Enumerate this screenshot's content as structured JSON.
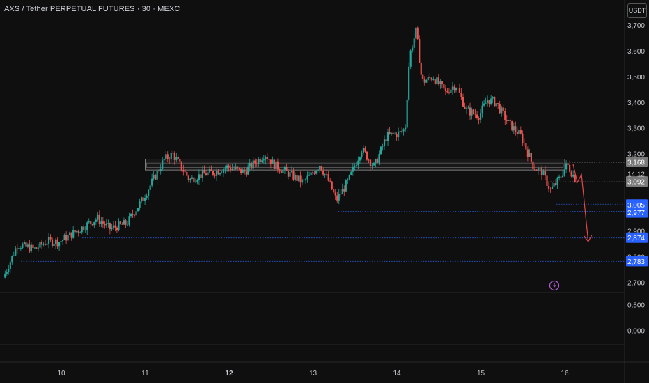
{
  "header": {
    "title": "AXS / Tether PERPETUAL FUTURES · 30 · MEXC",
    "currency": "USDT"
  },
  "colors": {
    "background": "#0f0f0f",
    "up": "#26a69a",
    "down": "#ef5350",
    "blue_tag": "#2962ff",
    "gray_tag": "#7a7a7a",
    "dotted_blue": "#2a5bd7",
    "lightning": "#b35cd6",
    "arrow": "#e04a4a"
  },
  "chart_data": {
    "type": "candlestick",
    "title": "AXS / Tether PERPETUAL FUTURES · 30 · MEXC",
    "ylim": [
      2.7,
      3.72
    ],
    "y_ticks_upper": [
      "3,700",
      "3,600",
      "3,500",
      "3,400",
      "3,300",
      "3,200",
      "2,900",
      "2,800",
      "2,700"
    ],
    "y_ticks_lower": [
      "0,500",
      "0,000"
    ],
    "x_ticks": [
      "10",
      "11",
      "12",
      "13",
      "14",
      "15",
      "16"
    ],
    "x_range": [
      9.3,
      16.75
    ],
    "price_path": [
      [
        9.33,
        2.72
      ],
      [
        9.5,
        2.85
      ],
      [
        9.7,
        2.83
      ],
      [
        9.85,
        2.86
      ],
      [
        10.0,
        2.86
      ],
      [
        10.2,
        2.9
      ],
      [
        10.45,
        2.95
      ],
      [
        10.6,
        2.91
      ],
      [
        10.8,
        2.93
      ],
      [
        11.0,
        3.03
      ],
      [
        11.15,
        3.12
      ],
      [
        11.25,
        3.18
      ],
      [
        11.35,
        3.2
      ],
      [
        11.45,
        3.15
      ],
      [
        11.55,
        3.1
      ],
      [
        11.7,
        3.12
      ],
      [
        11.85,
        3.13
      ],
      [
        12.0,
        3.15
      ],
      [
        12.2,
        3.13
      ],
      [
        12.45,
        3.2
      ],
      [
        12.55,
        3.16
      ],
      [
        12.75,
        3.12
      ],
      [
        12.9,
        3.09
      ],
      [
        13.0,
        3.12
      ],
      [
        13.1,
        3.16
      ],
      [
        13.2,
        3.1
      ],
      [
        13.3,
        3.02
      ],
      [
        13.45,
        3.1
      ],
      [
        13.6,
        3.22
      ],
      [
        13.75,
        3.15
      ],
      [
        13.9,
        3.27
      ],
      [
        14.05,
        3.28
      ],
      [
        14.12,
        3.3
      ],
      [
        14.17,
        3.58
      ],
      [
        14.25,
        3.68
      ],
      [
        14.32,
        3.48
      ],
      [
        14.45,
        3.5
      ],
      [
        14.6,
        3.44
      ],
      [
        14.72,
        3.47
      ],
      [
        14.85,
        3.37
      ],
      [
        15.0,
        3.35
      ],
      [
        15.1,
        3.41
      ],
      [
        15.2,
        3.4
      ],
      [
        15.35,
        3.32
      ],
      [
        15.5,
        3.27
      ],
      [
        15.65,
        3.15
      ],
      [
        15.75,
        3.13
      ],
      [
        15.85,
        3.06
      ],
      [
        15.95,
        3.1
      ],
      [
        16.05,
        3.16
      ],
      [
        16.15,
        3.1
      ]
    ],
    "levels": [
      {
        "price": 3.168,
        "label": "3,168",
        "tag": "gray"
      },
      {
        "price": 3.092,
        "label": "3,092",
        "tag": "gray"
      },
      {
        "price": 3.005,
        "label": "3,005",
        "tag": "blue"
      },
      {
        "price": 2.977,
        "label": "2,977",
        "tag": "blue"
      },
      {
        "price": 2.874,
        "label": "2,874",
        "tag": "blue"
      },
      {
        "price": 2.783,
        "label": "2,783",
        "tag": "blue"
      }
    ],
    "countdown": "14:12",
    "zones": [
      {
        "from_x": 11.0,
        "to_x": 16.0,
        "ylow": 3.138,
        "yhigh": 3.168
      }
    ],
    "projection": [
      [
        16.1,
        3.16
      ],
      [
        16.15,
        3.09
      ],
      [
        16.2,
        3.12
      ],
      [
        16.28,
        2.86
      ]
    ]
  }
}
